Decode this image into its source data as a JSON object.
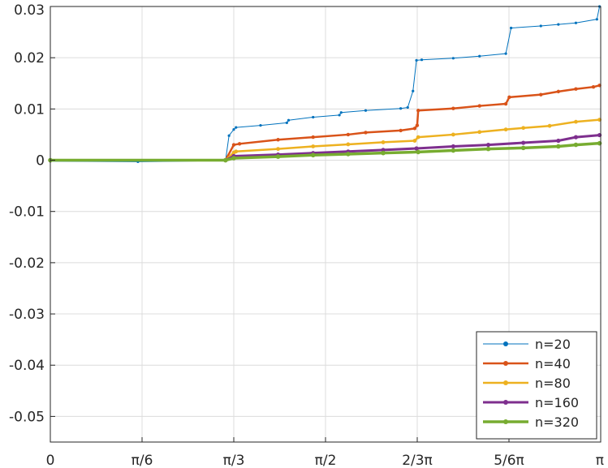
{
  "chart_data": {
    "type": "line",
    "title": "",
    "xlabel": "",
    "ylabel": "",
    "xlim": [
      0,
      3.14159265
    ],
    "ylim": [
      -0.055,
      0.03
    ],
    "grid": true,
    "legend_position": "bottom-right",
    "x_ticks": [
      {
        "value": 0,
        "label": "0"
      },
      {
        "value": 0.5236,
        "label": "π/6"
      },
      {
        "value": 1.0472,
        "label": "π/3"
      },
      {
        "value": 1.5708,
        "label": "π/2"
      },
      {
        "value": 2.0944,
        "label": "2/3π"
      },
      {
        "value": 2.618,
        "label": "5/6π"
      },
      {
        "value": 3.1416,
        "label": "π"
      }
    ],
    "y_ticks": [
      {
        "value": 0.03,
        "label": "0.03"
      },
      {
        "value": 0.02,
        "label": "0.02"
      },
      {
        "value": 0.01,
        "label": "0.01"
      },
      {
        "value": 0,
        "label": "0"
      },
      {
        "value": -0.01,
        "label": "-0.01"
      },
      {
        "value": -0.02,
        "label": "-0.02"
      },
      {
        "value": -0.03,
        "label": "-0.03"
      },
      {
        "value": -0.04,
        "label": "-0.04"
      },
      {
        "value": -0.05,
        "label": "-0.05"
      }
    ],
    "series": [
      {
        "name": "n=20",
        "color": "#0072BD",
        "x": [
          0.0,
          0.5,
          1.0,
          1.02,
          1.0472,
          1.06,
          1.2,
          1.35,
          1.36,
          1.5,
          1.65,
          1.66,
          1.8,
          2.0,
          2.04,
          2.07,
          2.09,
          2.12,
          2.3,
          2.45,
          2.6,
          2.63,
          2.8,
          2.9,
          3.0,
          3.12,
          3.135
        ],
        "y": [
          -0.0002,
          -0.0003,
          -0.0001,
          0.0048,
          0.006,
          0.0064,
          0.0068,
          0.0073,
          0.0078,
          0.0084,
          0.0088,
          0.0093,
          0.0097,
          0.0101,
          0.0103,
          0.0135,
          0.0195,
          0.0196,
          0.0199,
          0.0203,
          0.0208,
          0.0258,
          0.0262,
          0.0265,
          0.0268,
          0.0275,
          0.03
        ]
      },
      {
        "name": "n=40",
        "color": "#D95319",
        "x": [
          0.0,
          1.0,
          1.0472,
          1.08,
          1.3,
          1.5,
          1.7,
          1.8,
          2.0,
          2.08,
          2.094,
          2.1,
          2.3,
          2.45,
          2.6,
          2.62,
          2.8,
          2.9,
          3.0,
          3.1,
          3.135
        ],
        "y": [
          0.0,
          0.0,
          0.003,
          0.0032,
          0.004,
          0.0045,
          0.005,
          0.0054,
          0.0058,
          0.0062,
          0.0068,
          0.0097,
          0.0101,
          0.0106,
          0.011,
          0.0123,
          0.0128,
          0.0134,
          0.0139,
          0.0143,
          0.0146
        ]
      },
      {
        "name": "n=80",
        "color": "#EDB120",
        "x": [
          0.0,
          1.0,
          1.0472,
          1.06,
          1.3,
          1.5,
          1.7,
          1.9,
          2.08,
          2.1,
          2.3,
          2.45,
          2.6,
          2.7,
          2.85,
          3.0,
          3.135
        ],
        "y": [
          0.0,
          0.0,
          0.0015,
          0.0017,
          0.0022,
          0.0027,
          0.0031,
          0.0035,
          0.0038,
          0.0045,
          0.005,
          0.0055,
          0.006,
          0.0063,
          0.0067,
          0.0075,
          0.0079
        ]
      },
      {
        "name": "n=160",
        "color": "#7E2F8E",
        "x": [
          0.0,
          1.0,
          1.0472,
          1.3,
          1.5,
          1.7,
          1.9,
          2.09,
          2.3,
          2.5,
          2.7,
          2.9,
          3.0,
          3.135
        ],
        "y": [
          0.0,
          0.0,
          0.0008,
          0.0011,
          0.0014,
          0.0017,
          0.002,
          0.0023,
          0.0027,
          0.003,
          0.0034,
          0.0038,
          0.0045,
          0.0049
        ]
      },
      {
        "name": "n=320",
        "color": "#77AC30",
        "x": [
          0.0,
          1.0,
          1.0472,
          1.3,
          1.5,
          1.7,
          1.9,
          2.1,
          2.3,
          2.5,
          2.7,
          2.9,
          3.0,
          3.135
        ],
        "y": [
          0.0,
          0.0,
          0.0004,
          0.0007,
          0.001,
          0.0012,
          0.0014,
          0.0016,
          0.0019,
          0.0022,
          0.0024,
          0.0027,
          0.003,
          0.0033
        ]
      }
    ]
  }
}
